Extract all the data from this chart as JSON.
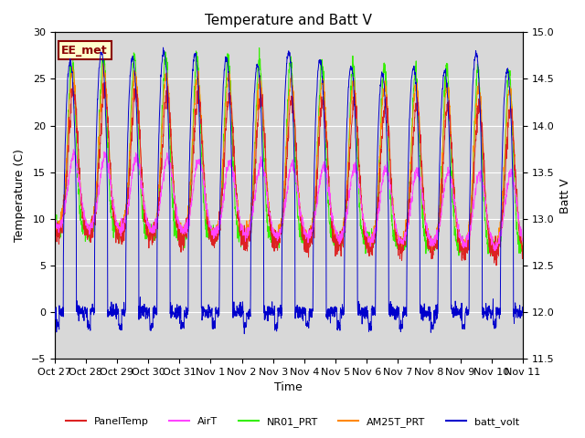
{
  "title": "Temperature and Batt V",
  "xlabel": "Time",
  "ylabel_left": "Temperature (C)",
  "ylabel_right": "Batt V",
  "ylim_left": [
    -5,
    30
  ],
  "ylim_right": [
    11.5,
    15.0
  ],
  "xlim": [
    0,
    15
  ],
  "x_tick_labels": [
    "Oct 27",
    "Oct 28",
    "Oct 29",
    "Oct 30",
    "Oct 31",
    "Nov 1",
    "Nov 2",
    "Nov 3",
    "Nov 4",
    "Nov 5",
    "Nov 6",
    "Nov 7",
    "Nov 8",
    "Nov 9",
    "Nov 10",
    "Nov 11"
  ],
  "annotation_text": "EE_met",
  "bg_color": "#ffffff",
  "plot_bg_color": "#d8d8d8",
  "grid_color": "#ffffff",
  "series_colors": {
    "PanelTemp": "#dd2222",
    "AirT": "#ff44ff",
    "NR01_PRT": "#33ee00",
    "AM25T_PRT": "#ff8800",
    "batt_volt": "#0000cc"
  },
  "num_days": 15,
  "pts_per_day": 144
}
